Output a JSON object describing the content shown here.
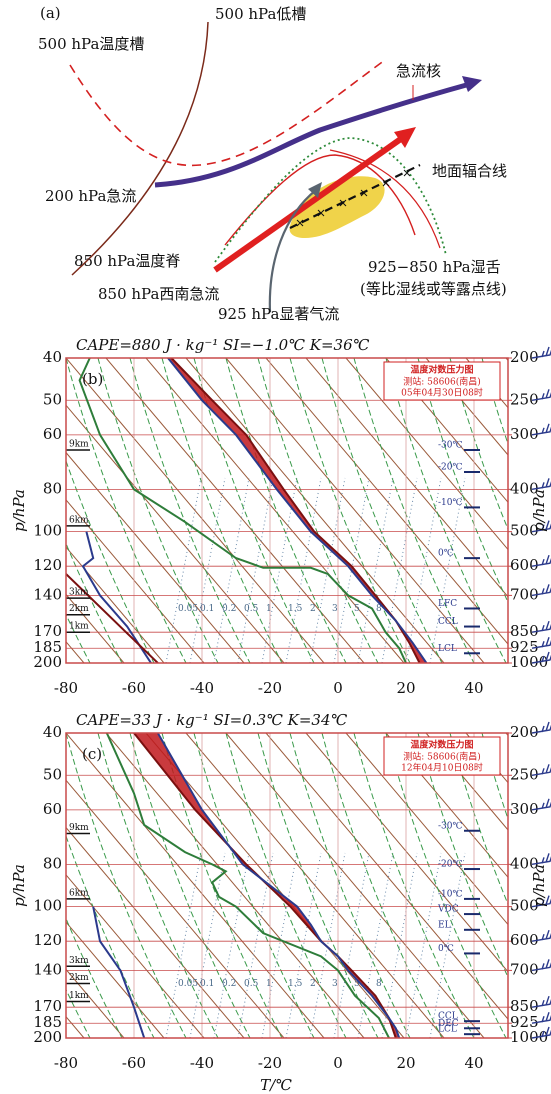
{
  "diagram": {
    "labels": {
      "panel": "(a)",
      "trough500": "500 hPa低槽",
      "temp_trough500": "500 hPa温度槽",
      "jet_core": "急流核",
      "jet200": "200 hPa急流",
      "surface_line": "地面辐合线",
      "ridge850": "850 hPa温度脊",
      "moist_tongue": "925−850 hPa湿舌",
      "moist_note": "(等比湿线或等露点线)",
      "jet850": "850 hPa西南急流",
      "flow925": "925 hPa显著气流"
    }
  },
  "chart_data": [
    {
      "type": "skewt",
      "panel_label": "(b)",
      "header": "CAPE=880  J · kg⁻¹  SI=−1.0℃  K=36℃",
      "inset": {
        "title": "温度对数压力图",
        "station": "测站: 58606(南昌)",
        "time": "05年04月30日08时"
      },
      "xlim": [
        -80,
        50
      ],
      "xticks": [
        -80,
        -60,
        -40,
        -20,
        0,
        20,
        40
      ],
      "ylabel": "p/hPa",
      "ylim": [
        200,
        40
      ],
      "yticks": [
        40,
        50,
        60,
        80,
        100,
        120,
        140,
        170,
        185,
        200
      ],
      "log_y": true,
      "y2label": "p/hPa",
      "y2lim": [
        1000,
        200
      ],
      "y2ticks": [
        200,
        250,
        300,
        400,
        500,
        600,
        700,
        850,
        925,
        1000
      ],
      "cape_fill": "#c0181c",
      "series": [
        {
          "color": "#7a1010",
          "values": [
            -49,
            -37,
            -27,
            -16,
            -7,
            4,
            11,
            17,
            21,
            24
          ],
          "p": [
            40,
            50,
            60,
            80,
            100,
            120,
            140,
            160,
            180,
            200
          ]
        },
        {
          "color": "#2b3a8c",
          "values": [
            -50,
            -40,
            -30,
            -18,
            -8,
            3,
            10,
            17,
            22,
            26
          ],
          "p": [
            40,
            50,
            60,
            80,
            100,
            120,
            140,
            160,
            180,
            200
          ]
        },
        {
          "color": "#2e7d3a",
          "values": [
            -73,
            -76,
            -70,
            -60,
            -45,
            -30,
            -22,
            -8,
            -3,
            3,
            10,
            14,
            18,
            20
          ],
          "p": [
            40,
            45,
            60,
            80,
            95,
            115,
            121,
            121,
            125,
            140,
            150,
            170,
            185,
            200
          ]
        },
        {
          "color": "#2b3a8c",
          "values": [
            -74,
            -72,
            -75,
            -70,
            -62,
            -55
          ],
          "p": [
            100,
            115,
            120,
            140,
            165,
            200
          ]
        },
        {
          "color": "#7a1010",
          "values": [
            -80,
            -53
          ],
          "p": [
            125,
            200
          ]
        }
      ],
      "level_labels": [
        {
          "label": "-30℃",
          "p": 65
        },
        {
          "label": "-20℃",
          "p": 73
        },
        {
          "label": "-10℃",
          "p": 88
        },
        {
          "label": "0℃",
          "p": 115
        },
        {
          "label": "LFC",
          "p": 150
        },
        {
          "label": "CCL",
          "p": 165
        },
        {
          "label": "LCL",
          "p": 190
        }
      ],
      "height_labels": [
        {
          "label": "9km",
          "p": 65
        },
        {
          "label": "6km",
          "p": 97
        },
        {
          "label": "3km",
          "p": 142
        },
        {
          "label": "2km",
          "p": 155
        },
        {
          "label": "1km",
          "p": 170
        }
      ],
      "mixing_ratio_labels": [
        "0.05",
        "0.1",
        "0.2",
        "0.5",
        "1",
        "1.5",
        "2",
        "3",
        "5",
        "8"
      ]
    },
    {
      "type": "skewt",
      "panel_label": "(c)",
      "header": "CAPE=33  J · kg⁻¹  SI=0.3℃  K=34℃",
      "inset": {
        "title": "温度对数压力图",
        "station": "测站: 58606(南昌)",
        "time": "12年04月10日08时"
      },
      "xlim": [
        -80,
        50
      ],
      "xticks": [
        -80,
        -60,
        -40,
        -20,
        0,
        20,
        40
      ],
      "xlabel": "T/℃",
      "ylabel": "p/hPa",
      "ylim": [
        200,
        40
      ],
      "yticks": [
        40,
        50,
        60,
        80,
        100,
        120,
        140,
        170,
        185,
        200
      ],
      "log_y": true,
      "y2label": "p/hPa",
      "y2lim": [
        1000,
        200
      ],
      "y2ticks": [
        200,
        250,
        300,
        400,
        500,
        600,
        700,
        850,
        925,
        1000
      ],
      "cape_fill": "#c0181c",
      "series": [
        {
          "color": "#7a1010",
          "values": [
            -60,
            -42,
            -27,
            -14,
            -5,
            0,
            4,
            11,
            15,
            17
          ],
          "p": [
            40,
            60,
            80,
            100,
            120,
            130,
            140,
            160,
            180,
            200
          ]
        },
        {
          "color": "#2b3a8c",
          "values": [
            -53,
            -40,
            -28,
            -12,
            -8,
            -5,
            0,
            3,
            10,
            15,
            17,
            18
          ],
          "p": [
            40,
            60,
            80,
            100,
            110,
            120,
            130,
            140,
            160,
            180,
            190,
            200
          ]
        },
        {
          "color": "#2e7d3a",
          "values": [
            -68,
            -60,
            -57,
            -45,
            -37,
            -33,
            -37,
            -35,
            -30,
            -22,
            -5,
            0,
            5,
            12,
            15
          ],
          "p": [
            40,
            55,
            65,
            75,
            80,
            83,
            88,
            95,
            100,
            115,
            130,
            140,
            160,
            180,
            200
          ]
        },
        {
          "color": "#2b3a8c",
          "values": [
            -72,
            -70,
            -64,
            -60,
            -57
          ],
          "p": [
            100,
            120,
            140,
            170,
            200
          ]
        }
      ],
      "level_labels": [
        {
          "label": "-30℃",
          "p": 67
        },
        {
          "label": "-20℃",
          "p": 82
        },
        {
          "label": "-10℃",
          "p": 96
        },
        {
          "label": "VDC",
          "p": 104
        },
        {
          "label": "EL",
          "p": 113
        },
        {
          "label": "0℃",
          "p": 128
        },
        {
          "label": "CCL",
          "p": 183
        },
        {
          "label": "DEC",
          "p": 190
        },
        {
          "label": "LCL",
          "p": 196
        }
      ],
      "height_labels": [
        {
          "label": "9km",
          "p": 68
        },
        {
          "label": "6km",
          "p": 96
        },
        {
          "label": "3km",
          "p": 137
        },
        {
          "label": "2km",
          "p": 150
        },
        {
          "label": "1km",
          "p": 165
        }
      ],
      "mixing_ratio_labels": [
        "0.05",
        "0.1",
        "0.2",
        "0.5",
        "1",
        "1.5",
        "2",
        "3",
        "5",
        "8"
      ]
    }
  ]
}
